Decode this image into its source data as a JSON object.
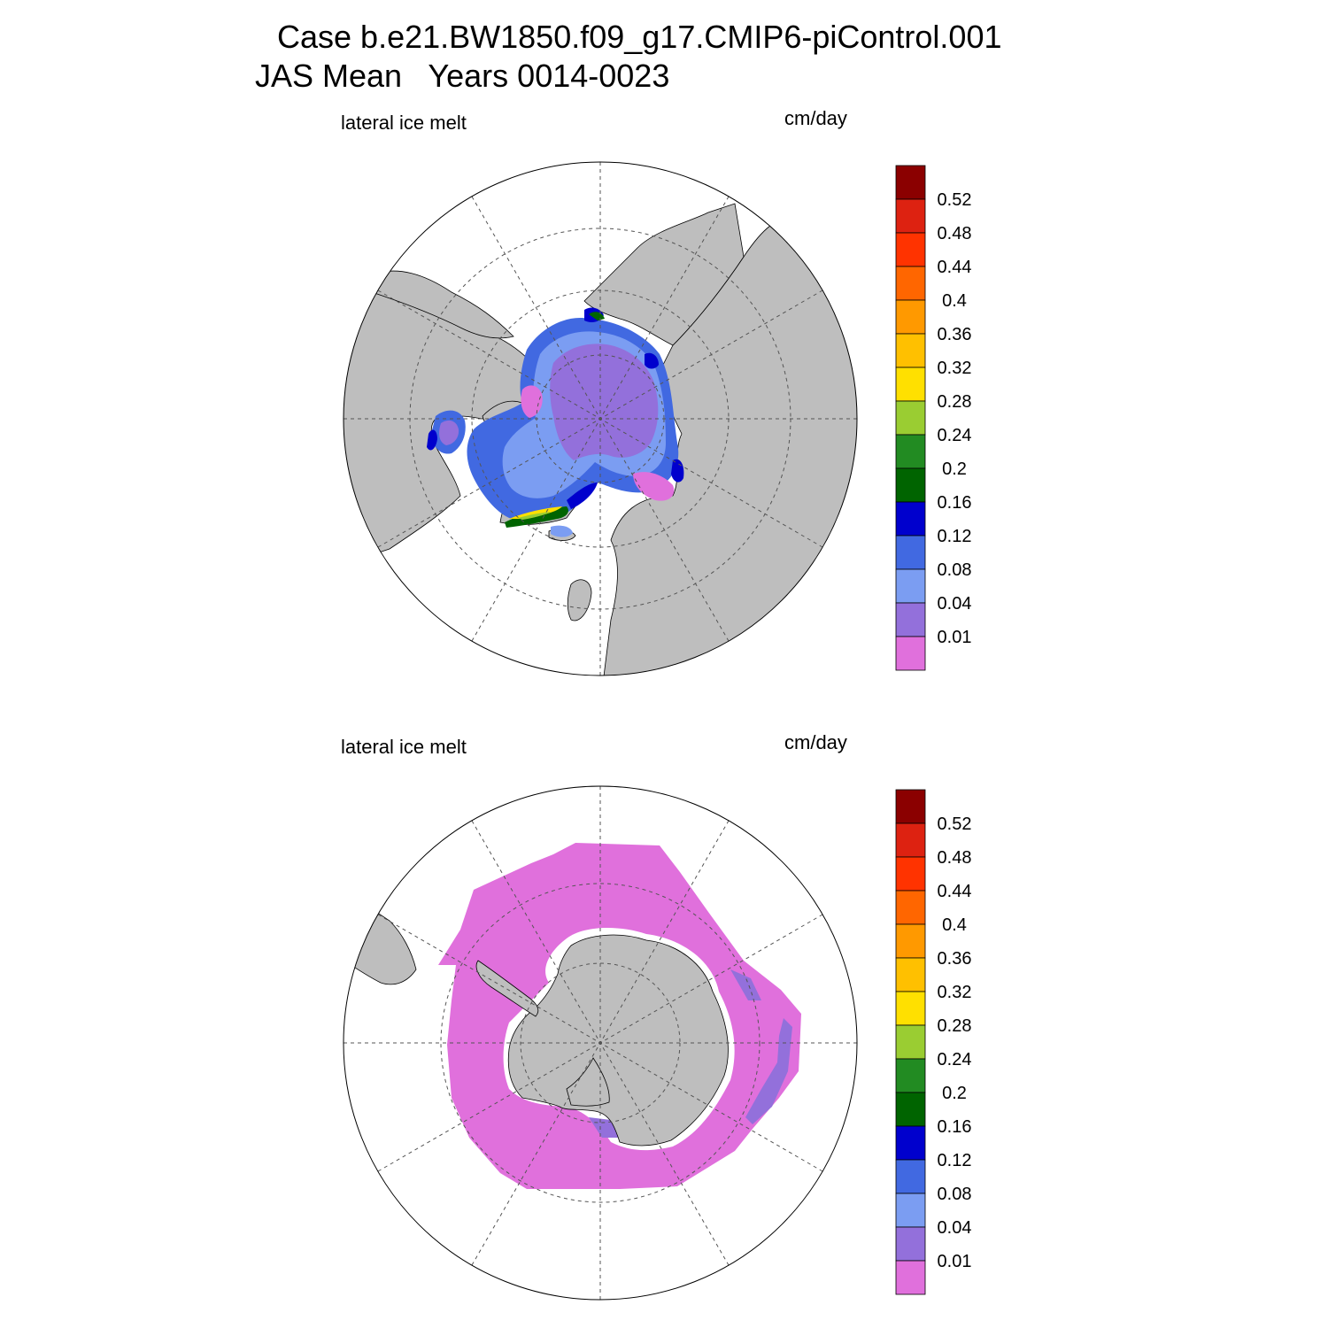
{
  "title": {
    "line1": "Case b.e21.BW1850.f09_g17.CMIP6-piControl.001",
    "line2": "JAS Mean   Years 0014-0023"
  },
  "panels": [
    {
      "name": "arctic",
      "field": "lateral ice melt",
      "units": "cm/day"
    },
    {
      "name": "antarctic",
      "field": "lateral ice melt",
      "units": "cm/day"
    }
  ],
  "colorbar": {
    "levels": [
      "0.01",
      "0.04",
      "0.08",
      "0.12",
      "0.16",
      "0.2",
      "0.24",
      "0.28",
      "0.32",
      "0.36",
      "0.4",
      "0.44",
      "0.48",
      "0.52"
    ],
    "colors": [
      "#e070dc",
      "#9370db",
      "#7b9df2",
      "#4169e1",
      "#0000cd",
      "#006400",
      "#228b22",
      "#9acd32",
      "#ffe000",
      "#ffc000",
      "#ff9900",
      "#ff6600",
      "#ff3300",
      "#dd2211",
      "#8b0000"
    ]
  },
  "colors": {
    "land": "#bebebe",
    "ocean": "#ffffff",
    "grid": "#555555"
  }
}
